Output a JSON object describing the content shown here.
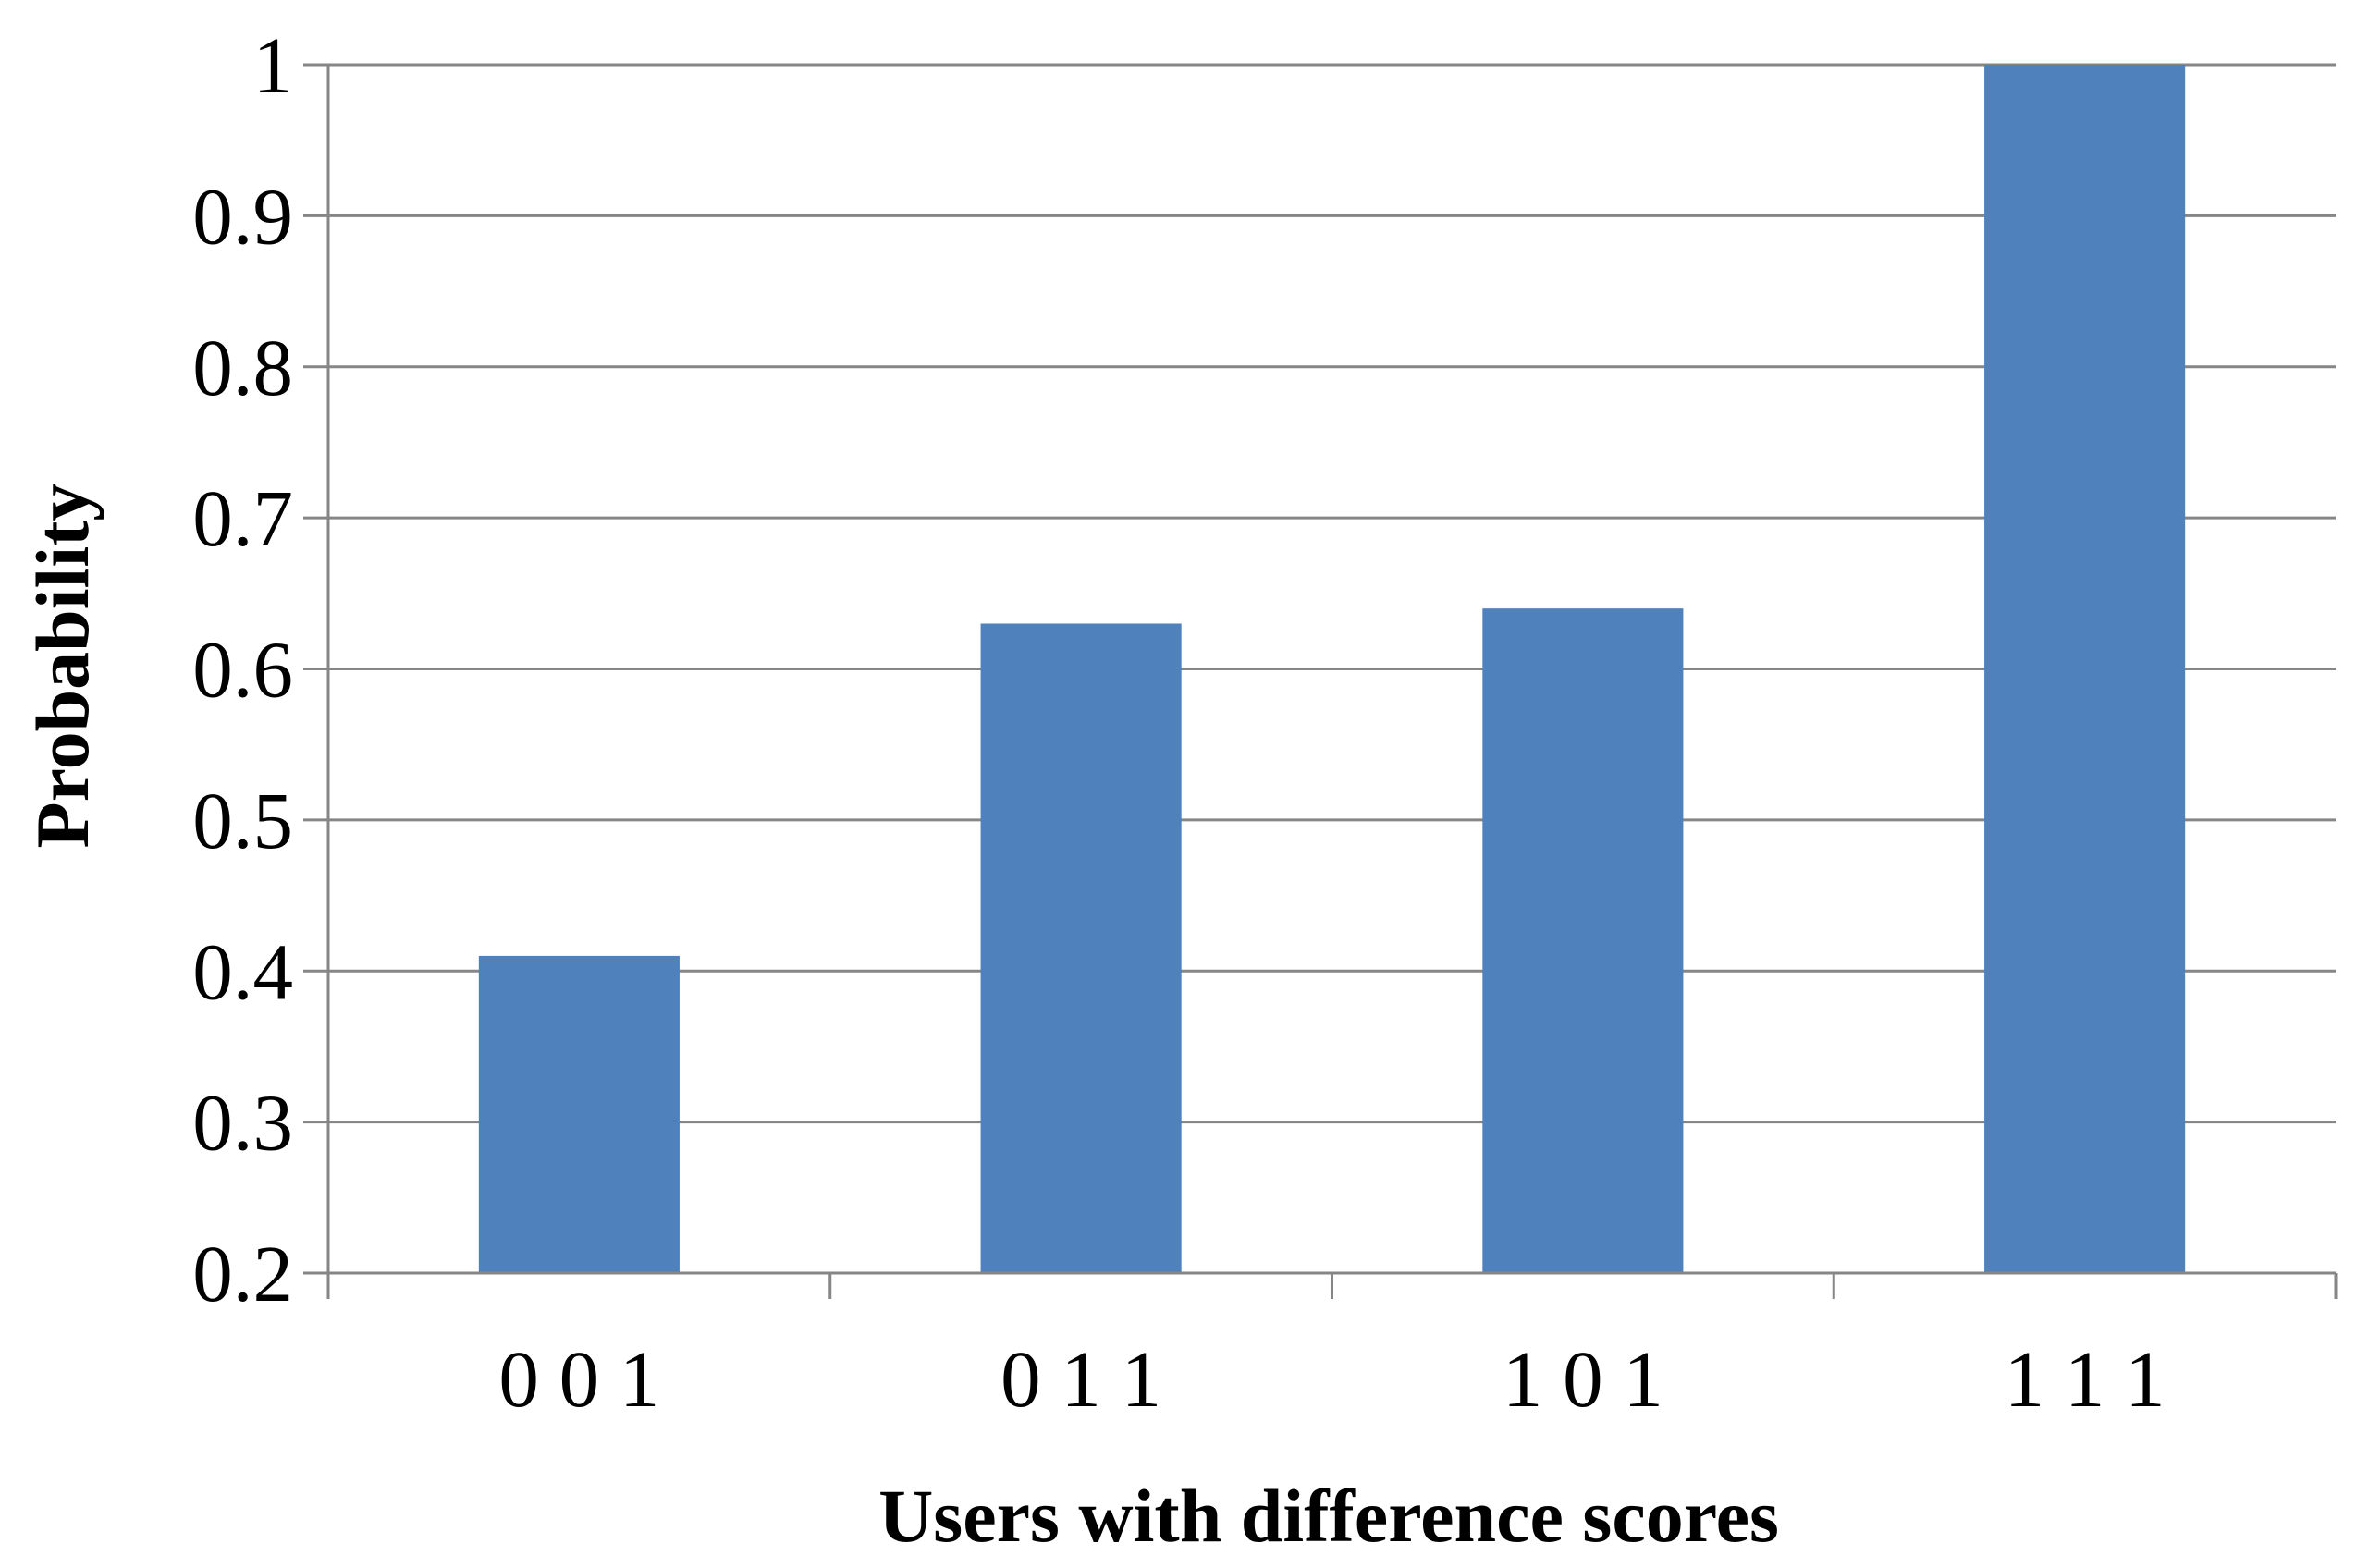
{
  "chart_data": {
    "type": "bar",
    "title": "",
    "xlabel": "Users with difference scores",
    "ylabel": "Probability",
    "categories": [
      "0 0 1",
      "0 1 1",
      "1 0 1",
      "1 1 1"
    ],
    "series": [
      {
        "values": [
          0.41,
          0.63,
          0.64,
          1.0
        ]
      }
    ],
    "ylim": [
      0.2,
      1
    ],
    "yticks": [
      0.2,
      0.3,
      0.4,
      0.5,
      0.6,
      0.7,
      0.8,
      0.9,
      1
    ],
    "ytick_labels": [
      "0.2",
      "0.3",
      "0.4",
      "0.5",
      "0.6",
      "0.7",
      "0.8",
      "0.9",
      "1"
    ],
    "grid": true,
    "legend": "none",
    "colors": {
      "bar": "#4f81bd",
      "grid": "#868686",
      "axis": "#868686"
    }
  }
}
